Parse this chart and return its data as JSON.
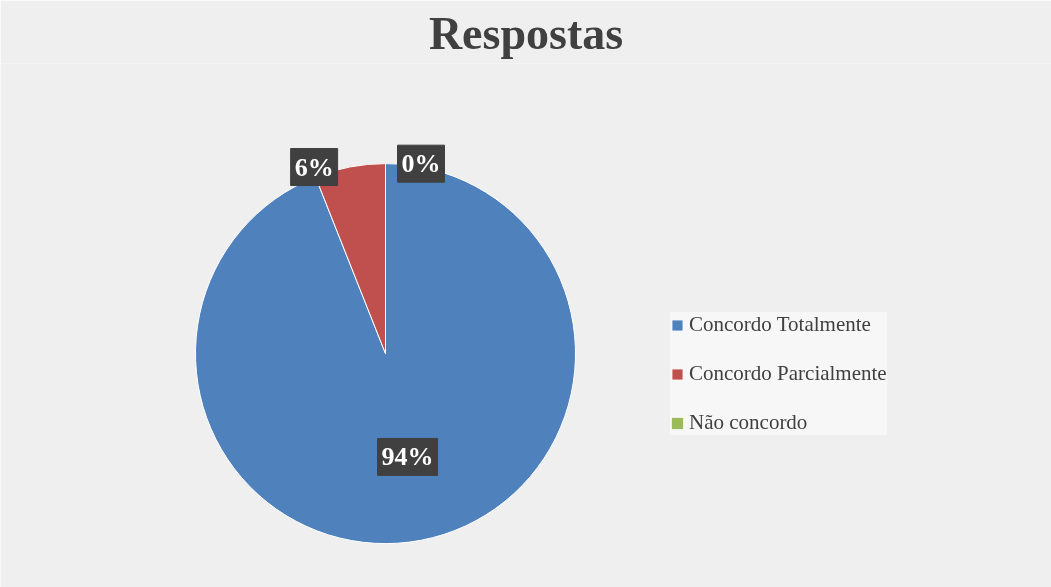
{
  "chart_data": {
    "type": "pie",
    "title": "Respostas",
    "categories": [
      "Concordo Totalmente",
      "Concordo Parcialmente",
      "Não concordo"
    ],
    "values": [
      94,
      6,
      0
    ],
    "colors": [
      "#4f81bd",
      "#c0504d",
      "#9bbb59"
    ],
    "value_labels": [
      "94%",
      "6%",
      "0%"
    ],
    "legend": "right"
  }
}
